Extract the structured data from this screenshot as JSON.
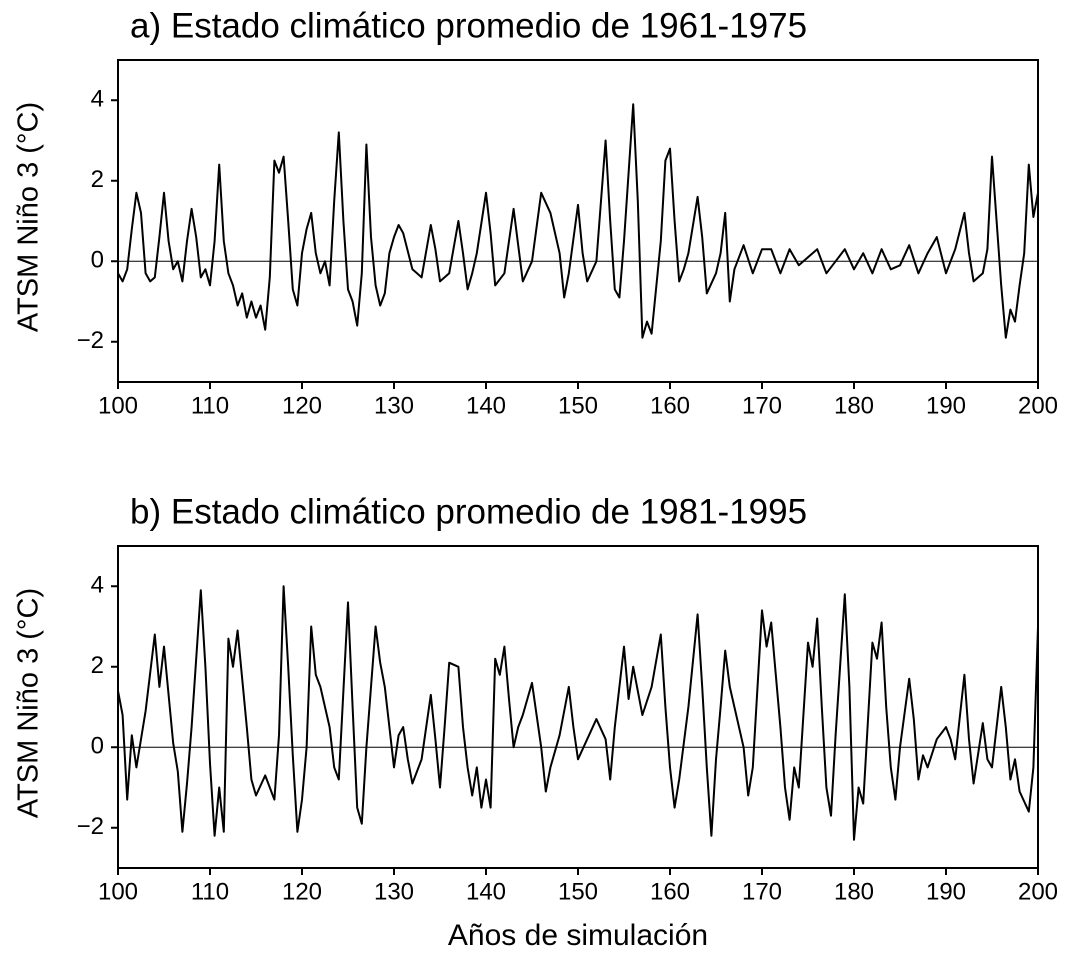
{
  "chart_data": [
    {
      "type": "line",
      "title": "a) Estado climático promedio de 1961-1975",
      "ylabel": "ATSM Niño 3 (°C)",
      "color": "#000000",
      "xlim": [
        100,
        200
      ],
      "ylim": [
        -3,
        5
      ],
      "xticks": [
        100,
        110,
        120,
        130,
        140,
        150,
        160,
        170,
        180,
        190,
        200
      ],
      "yticks": [
        {
          "value": -2,
          "label": "−2"
        },
        0,
        2,
        4
      ],
      "hline": 0,
      "x": [
        100,
        100.5,
        101,
        101.5,
        102,
        102.5,
        103,
        103.5,
        104,
        104.5,
        105,
        105.5,
        106,
        106.5,
        107,
        107.5,
        108,
        108.5,
        109,
        109.5,
        110,
        110.5,
        111,
        111.5,
        112,
        112.5,
        113,
        113.5,
        114,
        114.5,
        115,
        115.5,
        116,
        116.5,
        117,
        117.5,
        118,
        118.5,
        119,
        119.5,
        120,
        120.5,
        121,
        121.5,
        122,
        122.5,
        123,
        123.5,
        124,
        124.5,
        125,
        125.5,
        126,
        126.5,
        127,
        127.5,
        128,
        128.5,
        129,
        129.5,
        130,
        130.5,
        131,
        132,
        132.5,
        133,
        134,
        134.5,
        135,
        136,
        137,
        137.5,
        138,
        138.5,
        139,
        140,
        140.5,
        141,
        142,
        143,
        143.5,
        144,
        145,
        146,
        147,
        148,
        148.5,
        149,
        150,
        150.5,
        151,
        152,
        153,
        153.5,
        154,
        154.5,
        155,
        156,
        156.5,
        157,
        157.5,
        158,
        159,
        159.5,
        160,
        160.5,
        161,
        161.5,
        162,
        163,
        163.5,
        164,
        165,
        165.5,
        166,
        166.5,
        167,
        168,
        169,
        170,
        171,
        172,
        173,
        174,
        176,
        177,
        178,
        179,
        180,
        181,
        182,
        183,
        184,
        185,
        186,
        187,
        188,
        189,
        190,
        191,
        192,
        192.5,
        193,
        194,
        194.5,
        195,
        195.5,
        196,
        196.5,
        197,
        197.5,
        198,
        198.5,
        199,
        199.5,
        200
      ],
      "values": [
        -0.3,
        -0.5,
        -0.2,
        0.8,
        1.7,
        1.2,
        -0.3,
        -0.5,
        -0.4,
        0.6,
        1.7,
        0.5,
        -0.2,
        0,
        -0.5,
        0.5,
        1.3,
        0.6,
        -0.4,
        -0.2,
        -0.6,
        0.5,
        2.4,
        0.5,
        -0.3,
        -0.6,
        -1.1,
        -0.8,
        -1.4,
        -1.0,
        -1.4,
        -1.1,
        -1.7,
        -0.4,
        2.5,
        2.2,
        2.6,
        1.0,
        -0.7,
        -1.1,
        0.2,
        0.8,
        1.2,
        0.2,
        -0.3,
        0,
        -0.6,
        1.5,
        3.2,
        1.0,
        -0.7,
        -1.0,
        -1.6,
        -0.3,
        2.9,
        0.6,
        -0.6,
        -1.1,
        -0.8,
        0.2,
        0.6,
        0.9,
        0.7,
        -0.2,
        -0.3,
        -0.4,
        0.9,
        0.3,
        -0.5,
        -0.3,
        1.0,
        0.2,
        -0.7,
        -0.3,
        0.2,
        1.7,
        0.7,
        -0.6,
        -0.3,
        1.3,
        0.4,
        -0.5,
        0,
        1.7,
        1.2,
        0.2,
        -0.9,
        -0.3,
        1.4,
        0.2,
        -0.5,
        0,
        3.0,
        1.0,
        -0.7,
        -0.9,
        0.5,
        3.9,
        1.5,
        -1.9,
        -1.5,
        -1.8,
        0.5,
        2.5,
        2.8,
        1.0,
        -0.5,
        -0.2,
        0.2,
        1.6,
        0.6,
        -0.8,
        -0.3,
        0.2,
        1.2,
        -1.0,
        -0.2,
        0.4,
        -0.3,
        0.3,
        0.3,
        -0.3,
        0.3,
        -0.1,
        0.3,
        -0.3,
        0,
        0.3,
        -0.2,
        0.2,
        -0.3,
        0.3,
        -0.2,
        -0.1,
        0.4,
        -0.3,
        0.2,
        0.6,
        -0.3,
        0.3,
        1.2,
        0.2,
        -0.5,
        -0.3,
        0.3,
        2.6,
        1.0,
        -0.6,
        -1.9,
        -1.2,
        -1.5,
        -0.6,
        0.2,
        2.4,
        1.1,
        1.7
      ]
    },
    {
      "type": "line",
      "title": "b) Estado climático promedio de 1981-1995",
      "ylabel": "ATSM Niño 3 (°C)",
      "xlabel": "Años de simulación",
      "color": "#000000",
      "xlim": [
        100,
        200
      ],
      "ylim": [
        -3,
        5
      ],
      "xticks": [
        100,
        110,
        120,
        130,
        140,
        150,
        160,
        170,
        180,
        190,
        200
      ],
      "yticks": [
        {
          "value": -2,
          "label": "−2"
        },
        0,
        2,
        4
      ],
      "hline": 0,
      "x": [
        100,
        100.5,
        101,
        101.5,
        102,
        103,
        104,
        104.5,
        105,
        106,
        106.5,
        107,
        107.5,
        108,
        109,
        109.5,
        110,
        110.5,
        111,
        111.5,
        112,
        112.5,
        113,
        114,
        114.5,
        115,
        116,
        117,
        117.5,
        118,
        118.5,
        119,
        119.5,
        120,
        120.5,
        121,
        121.5,
        122,
        123,
        123.5,
        124,
        125,
        125.5,
        126,
        126.5,
        127,
        128,
        128.5,
        129,
        130,
        130.5,
        131,
        131.5,
        132,
        133,
        134,
        134.5,
        135,
        135.5,
        136,
        137,
        137.5,
        138,
        138.5,
        139,
        139.5,
        140,
        140.5,
        141,
        141.5,
        142,
        142.5,
        143,
        143.5,
        144,
        145,
        146,
        146.5,
        147,
        148,
        149,
        149.5,
        150,
        151,
        152,
        153,
        153.5,
        154,
        155,
        155.5,
        156,
        157,
        158,
        159,
        159.5,
        160,
        160.5,
        161,
        162,
        163,
        163.5,
        164,
        164.5,
        165,
        165.5,
        166,
        166.5,
        167,
        168,
        168.5,
        169,
        170,
        170.5,
        171,
        172,
        172.5,
        173,
        173.5,
        174,
        175,
        175.5,
        176,
        176.5,
        177,
        177.5,
        178,
        179,
        179.5,
        180,
        180.5,
        181,
        182,
        182.5,
        183,
        183.5,
        184,
        184.5,
        185,
        186,
        186.5,
        187,
        187.5,
        188,
        189,
        190,
        190.5,
        191,
        192,
        192.5,
        193,
        194,
        194.5,
        195,
        196,
        196.5,
        197,
        197.5,
        198,
        199,
        199.5,
        200
      ],
      "values": [
        1.4,
        0.8,
        -1.3,
        0.3,
        -0.5,
        0.9,
        2.8,
        1.5,
        2.5,
        0.1,
        -0.6,
        -2.1,
        -0.9,
        0.5,
        3.9,
        2.0,
        -0.4,
        -2.2,
        -1.0,
        -2.1,
        2.7,
        2.0,
        2.9,
        0.5,
        -0.8,
        -1.2,
        -0.7,
        -1.3,
        0.3,
        4.0,
        2.0,
        -0.2,
        -2.1,
        -1.3,
        0,
        3.0,
        1.8,
        1.5,
        0.5,
        -0.5,
        -0.8,
        3.6,
        1.0,
        -1.5,
        -1.9,
        0,
        3.0,
        2.1,
        1.5,
        -0.5,
        0.3,
        0.5,
        -0.3,
        -0.9,
        -0.3,
        1.3,
        0.2,
        -1.0,
        0.5,
        2.1,
        2.0,
        0.5,
        -0.5,
        -1.2,
        -0.5,
        -1.5,
        -0.8,
        -1.5,
        2.2,
        1.8,
        2.5,
        1.2,
        0,
        0.5,
        0.8,
        1.6,
        0,
        -1.1,
        -0.5,
        0.3,
        1.5,
        0.5,
        -0.3,
        0.2,
        0.7,
        0.2,
        -0.8,
        0.5,
        2.5,
        1.2,
        2.0,
        0.8,
        1.5,
        2.8,
        1.0,
        -0.5,
        -1.5,
        -0.8,
        1.0,
        3.3,
        1.5,
        -0.5,
        -2.2,
        -0.3,
        1.0,
        2.4,
        1.5,
        1.0,
        0,
        -1.2,
        -0.5,
        3.4,
        2.5,
        3.1,
        0.5,
        -1.0,
        -1.8,
        -0.5,
        -1.0,
        2.6,
        2.0,
        3.2,
        1.0,
        -1.0,
        -1.7,
        0.3,
        3.8,
        1.5,
        -2.3,
        -1.0,
        -1.4,
        2.6,
        2.2,
        3.1,
        1.0,
        -0.5,
        -1.3,
        0,
        1.7,
        0.7,
        -0.8,
        -0.2,
        -0.5,
        0.2,
        0.5,
        0.2,
        -0.3,
        1.8,
        0.2,
        -0.9,
        0.6,
        -0.3,
        -0.5,
        1.5,
        0.5,
        -0.8,
        -0.3,
        -1.1,
        -1.6,
        -0.5,
        3.0
      ]
    }
  ]
}
